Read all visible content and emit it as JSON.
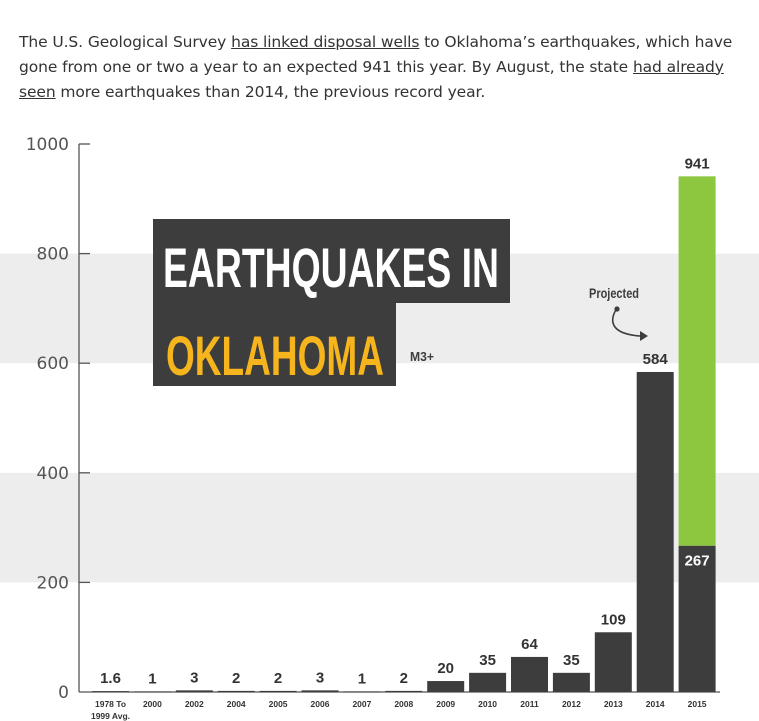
{
  "paragraph": {
    "t1": "The U.S. Geological Survey ",
    "link1": "has linked disposal wells",
    "t2": " to Oklahoma’s earthquakes, which have gone from one or two a year to an expected 941 this year. By August, the state ",
    "link2": "had already seen",
    "t3": " more earthquakes than 2014, the previous record year."
  },
  "chart_data": {
    "type": "bar",
    "title_line1": "EARTHQUAKES IN",
    "title_line2": "OKLAHOMA",
    "subtitle": "M3+",
    "categories": [
      [
        "1978 To",
        "1999 Avg."
      ],
      [
        "2000"
      ],
      [
        "2002"
      ],
      [
        "2004"
      ],
      [
        "2005"
      ],
      [
        "2006"
      ],
      [
        "2007"
      ],
      [
        "2008"
      ],
      [
        "2009"
      ],
      [
        "2010"
      ],
      [
        "2011"
      ],
      [
        "2012"
      ],
      [
        "2013"
      ],
      [
        "2014"
      ],
      [
        "2015"
      ]
    ],
    "values": [
      1.6,
      1,
      3,
      2,
      2,
      3,
      1,
      2,
      20,
      35,
      64,
      35,
      109,
      584,
      267
    ],
    "value_labels": [
      "1.6",
      "1",
      "3",
      "2",
      "2",
      "3",
      "1",
      "2",
      "20",
      "35",
      "64",
      "35",
      "109",
      "584",
      "267"
    ],
    "projected": {
      "category": "2015",
      "total": 941,
      "total_label": "941",
      "label": "Projected"
    },
    "ylim": [
      0,
      1000
    ],
    "yticks": [
      0,
      200,
      400,
      600,
      800,
      1000
    ],
    "ytick_labels": [
      "0",
      "200",
      "400",
      "600",
      "800",
      "1000"
    ],
    "grid_bands": true,
    "colors": {
      "bar": "#3d3d3d",
      "projected": "#8dc63f",
      "title_box": "#3d3d3d",
      "title_white": "#ffffff",
      "title_yellow": "#f6b51d",
      "band": "#ededed"
    }
  }
}
